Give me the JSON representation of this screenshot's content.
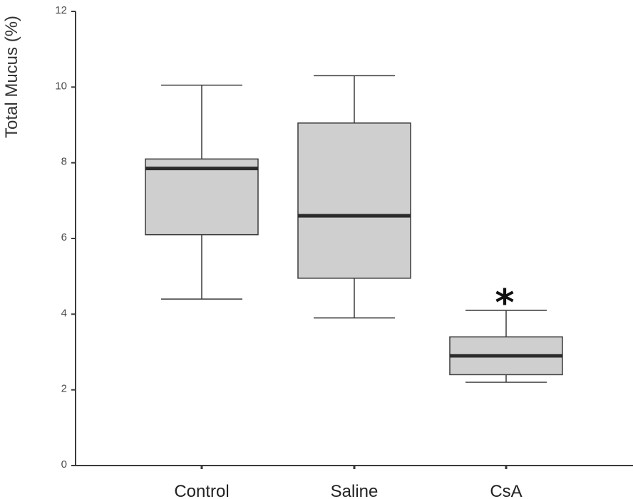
{
  "chart_data": {
    "type": "box",
    "title": "",
    "xlabel": "",
    "ylabel": "Total Mucus (%)",
    "ylim": [
      0,
      12
    ],
    "yticks": [
      "0",
      "2",
      "4",
      "6",
      "8",
      "10",
      "12"
    ],
    "grid": false,
    "categories": [
      "Control",
      "Saline",
      "CsA"
    ],
    "boxes": [
      {
        "category": "Control",
        "min": 4.4,
        "q1": 6.1,
        "median": 7.85,
        "q3": 8.1,
        "max": 10.05
      },
      {
        "category": "Saline",
        "min": 3.9,
        "q1": 4.95,
        "median": 6.6,
        "q3": 9.05,
        "max": 10.3
      },
      {
        "category": "CsA",
        "min": 2.2,
        "q1": 2.4,
        "median": 2.9,
        "q3": 3.4,
        "max": 4.1
      }
    ],
    "annotations": [
      {
        "text": "*",
        "category": "CsA",
        "y": 4.5
      }
    ],
    "colors": {
      "box_fill": "#cfcfcf",
      "box_stroke": "#3a3a3a",
      "median": "#2b2b2b",
      "axis": "#3a3a3a"
    }
  }
}
